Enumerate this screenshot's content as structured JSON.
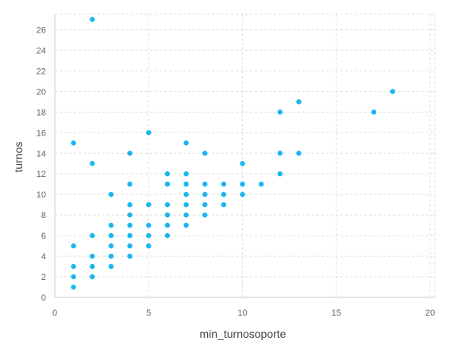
{
  "chart_data": {
    "type": "scatter",
    "title": "",
    "xlabel": "min_turnosoporte",
    "ylabel": "turnos",
    "xlim": [
      0,
      20
    ],
    "ylim": [
      0,
      27.5
    ],
    "xticks": [
      0,
      5,
      10,
      15,
      20
    ],
    "yticks": [
      0,
      2,
      4,
      6,
      8,
      10,
      12,
      14,
      16,
      18,
      20,
      22,
      24,
      26
    ],
    "grid": true,
    "point_color": "#1ab6f0",
    "points": [
      [
        1,
        1
      ],
      [
        1,
        2
      ],
      [
        1,
        3
      ],
      [
        1,
        5
      ],
      [
        1,
        15
      ],
      [
        2,
        2
      ],
      [
        2,
        3
      ],
      [
        2,
        4
      ],
      [
        2,
        6
      ],
      [
        2,
        13
      ],
      [
        2,
        27
      ],
      [
        3,
        3
      ],
      [
        3,
        4
      ],
      [
        3,
        5
      ],
      [
        3,
        6
      ],
      [
        3,
        7
      ],
      [
        3,
        10
      ],
      [
        4,
        4
      ],
      [
        4,
        5
      ],
      [
        4,
        6
      ],
      [
        4,
        7
      ],
      [
        4,
        8
      ],
      [
        4,
        9
      ],
      [
        4,
        11
      ],
      [
        4,
        14
      ],
      [
        5,
        5
      ],
      [
        5,
        6
      ],
      [
        5,
        7
      ],
      [
        5,
        9
      ],
      [
        5,
        16
      ],
      [
        6,
        6
      ],
      [
        6,
        7
      ],
      [
        6,
        8
      ],
      [
        6,
        9
      ],
      [
        6,
        11
      ],
      [
        6,
        12
      ],
      [
        7,
        7
      ],
      [
        7,
        8
      ],
      [
        7,
        9
      ],
      [
        7,
        10
      ],
      [
        7,
        11
      ],
      [
        7,
        12
      ],
      [
        7,
        15
      ],
      [
        8,
        8
      ],
      [
        8,
        9
      ],
      [
        8,
        10
      ],
      [
        8,
        11
      ],
      [
        8,
        14
      ],
      [
        9,
        9
      ],
      [
        9,
        10
      ],
      [
        9,
        11
      ],
      [
        10,
        10
      ],
      [
        10,
        11
      ],
      [
        10,
        13
      ],
      [
        11,
        11
      ],
      [
        12,
        12
      ],
      [
        12,
        14
      ],
      [
        12,
        18
      ],
      [
        13,
        14
      ],
      [
        13,
        19
      ],
      [
        17,
        18
      ],
      [
        18,
        20
      ]
    ]
  }
}
